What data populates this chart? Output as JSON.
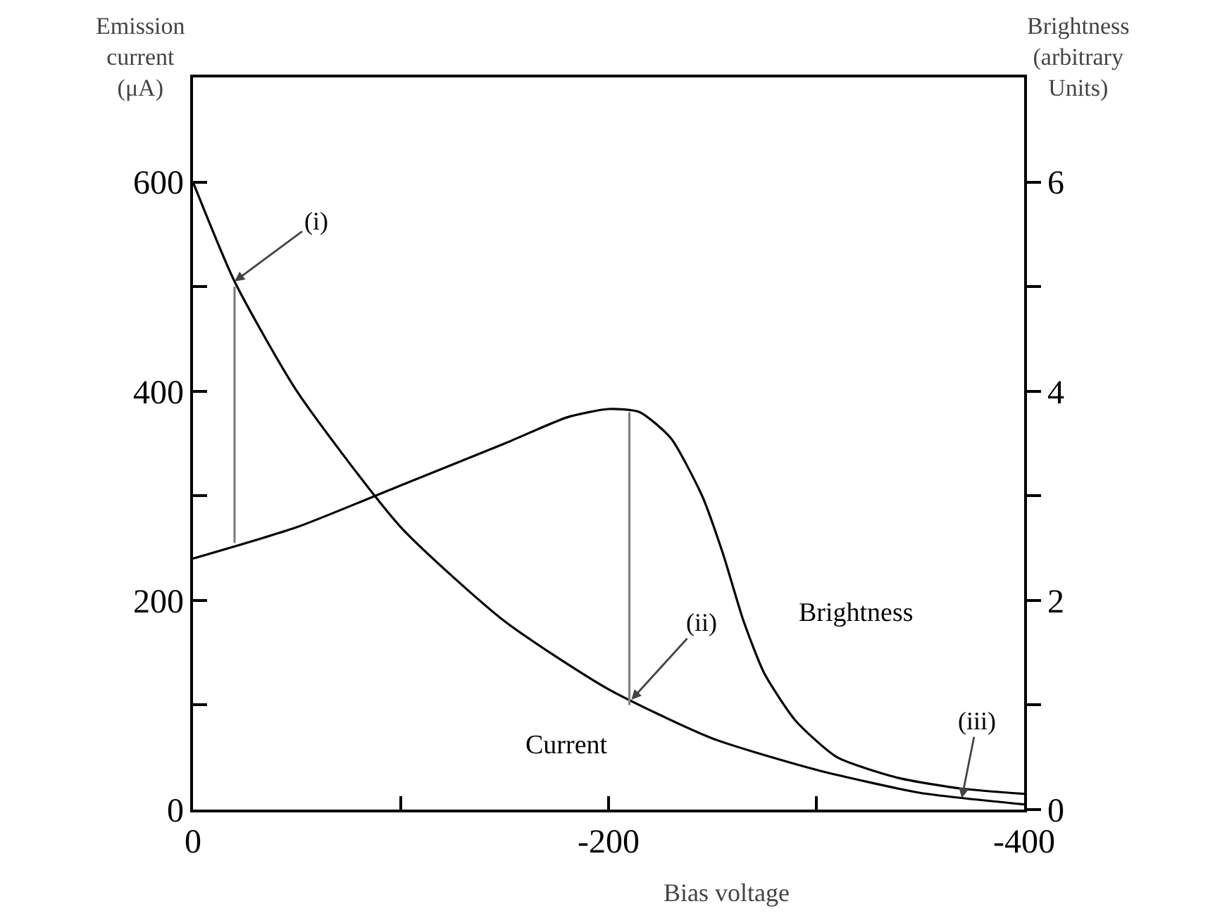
{
  "chart_data": {
    "type": "line",
    "xlabel": "Bias voltage",
    "ylabel": "Emission current (μA)",
    "y2label": "Brightness (arbitrary Units)",
    "xlim": [
      0,
      -400
    ],
    "xticks": [
      0,
      {
        "value": -100,
        "label": null
      },
      -200,
      {
        "value": -300,
        "label": null
      },
      -400
    ],
    "ylim": [
      0,
      700
    ],
    "yticks": [
      0,
      {
        "value": 100,
        "label": null
      },
      200,
      {
        "value": 300,
        "label": null
      },
      400,
      {
        "value": 500,
        "label": null
      },
      600
    ],
    "y2lim": [
      0,
      7
    ],
    "y2ticks": [
      0,
      {
        "value": 1,
        "label": null
      },
      2,
      {
        "value": 3,
        "label": null
      },
      4,
      {
        "value": 5,
        "label": null
      },
      6
    ],
    "grid": false,
    "legend": false,
    "marker": "none",
    "line_style": "solid",
    "series": [
      {
        "name": "Current",
        "color": "#000000",
        "x": [
          0,
          -20,
          -50,
          -100,
          -150,
          -200,
          -250,
          -300,
          -350,
          -400
        ],
        "values": [
          600,
          505,
          400,
          270,
          180,
          115,
          68,
          38,
          16,
          5
        ]
      },
      {
        "name": "Brightness",
        "color": "#000000",
        "axis": "y2",
        "x": [
          0,
          -50,
          -100,
          -150,
          -180,
          -200,
          -215,
          -230,
          -245,
          -255,
          -265,
          -275,
          -290,
          -310,
          -340,
          -370,
          -400
        ],
        "values": [
          2.4,
          2.7,
          3.1,
          3.5,
          3.75,
          3.83,
          3.8,
          3.55,
          3.0,
          2.45,
          1.8,
          1.3,
          0.85,
          0.5,
          0.3,
          0.2,
          0.15
        ]
      },
      {
        "color": "#808080",
        "x": [
          -20,
          -20
        ],
        "values": [
          255,
          500
        ]
      },
      {
        "color": "#808080",
        "x": [
          -210,
          -210
        ],
        "values": [
          100,
          380
        ]
      }
    ],
    "annotations": [
      {
        "text": "(i)",
        "x": -20,
        "y": 505
      },
      {
        "text": "(ii)",
        "x": -211,
        "y": 105
      },
      {
        "text": "(iii)",
        "x": -370,
        "y": 11
      }
    ]
  }
}
